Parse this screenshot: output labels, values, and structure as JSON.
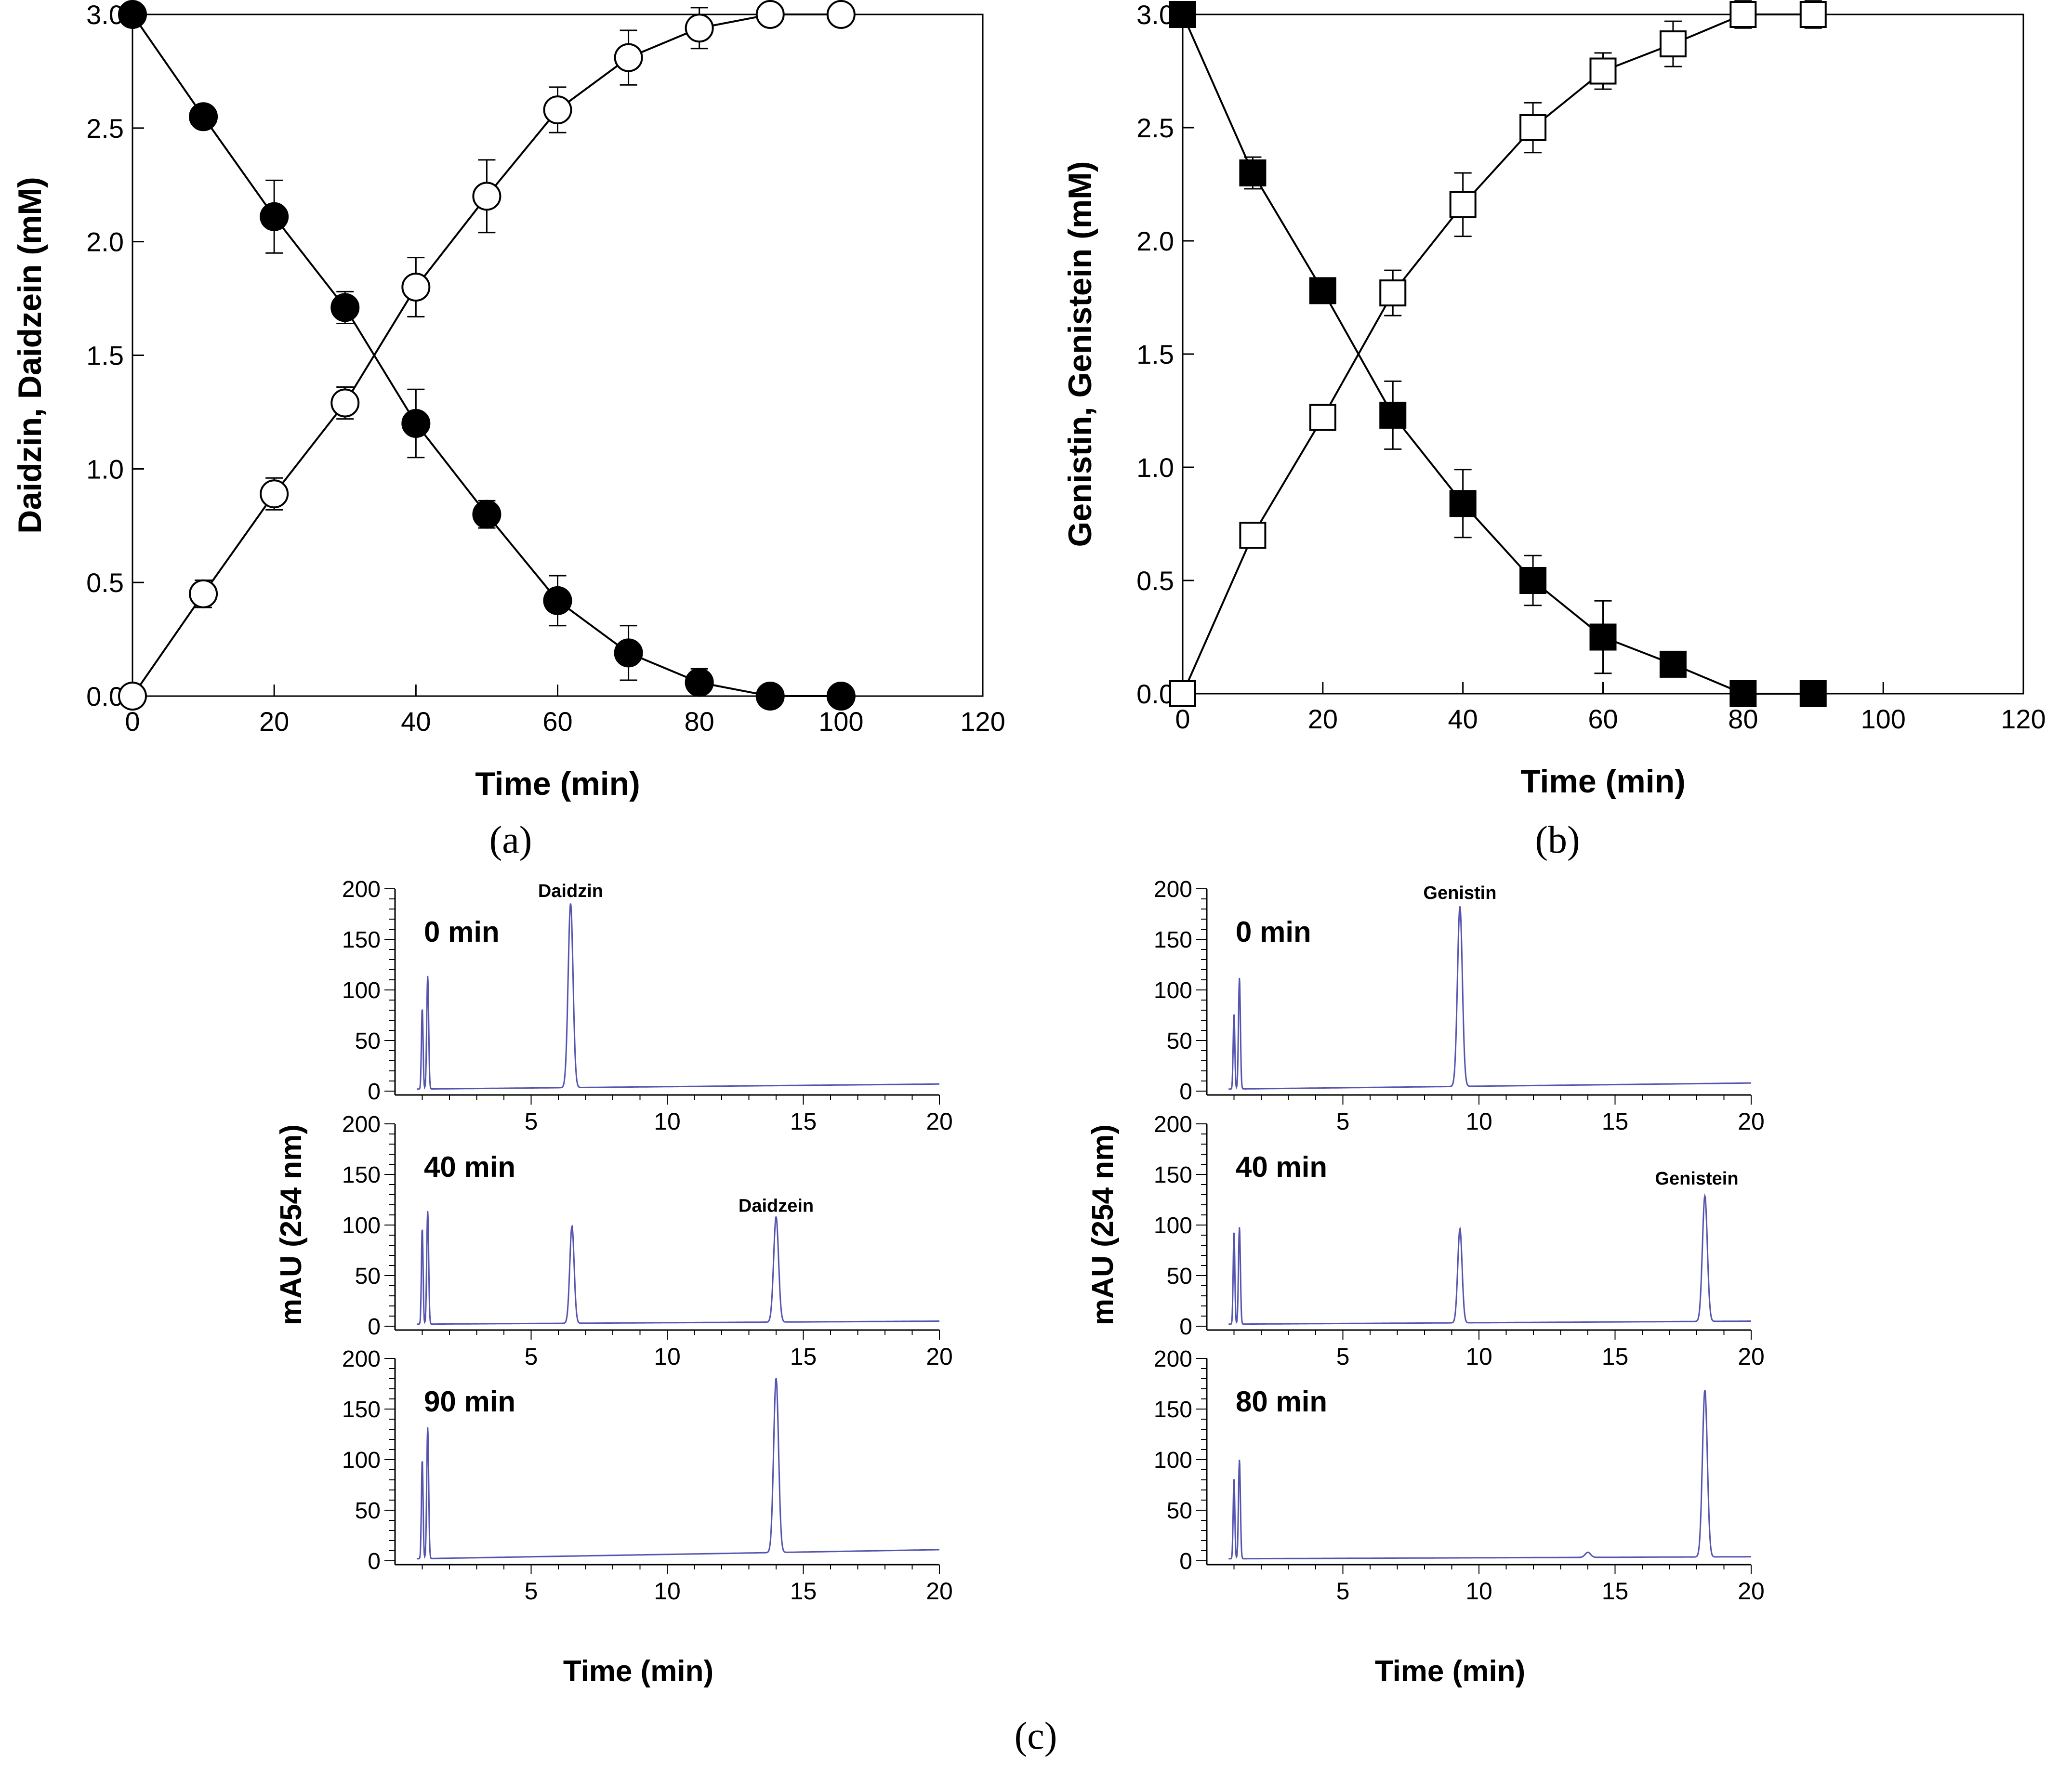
{
  "chart_data": [
    {
      "id": "a",
      "type": "line",
      "xlabel": "Time (min)",
      "ylabel": "Daidzin, Daidzein (mM)",
      "xlim": [
        0,
        120
      ],
      "ylim": [
        0,
        3.0
      ],
      "xticks": [
        0,
        20,
        40,
        60,
        80,
        100,
        120
      ],
      "xtick_labels": [
        "0",
        "20",
        "40",
        "60",
        "80",
        "100",
        "120"
      ],
      "yticks": [
        0,
        0.5,
        1.0,
        1.5,
        2.0,
        2.5,
        3.0
      ],
      "ytick_labels": [
        "0.0",
        "0.5",
        "1.0",
        "1.5",
        "2.0",
        "2.5",
        "3.0"
      ],
      "marker": "circle",
      "series": [
        {
          "name": "Daidzin",
          "fill": "filled",
          "x": [
            0,
            10,
            20,
            30,
            40,
            50,
            60,
            70,
            80,
            90,
            100
          ],
          "y": [
            3.0,
            2.55,
            2.11,
            1.71,
            1.2,
            0.8,
            0.42,
            0.19,
            0.06,
            0.0,
            0.0
          ],
          "err": [
            0.0,
            0.04,
            0.16,
            0.07,
            0.15,
            0.06,
            0.11,
            0.12,
            0.06,
            0.0,
            0.0
          ]
        },
        {
          "name": "Daidzein",
          "fill": "open",
          "x": [
            0,
            10,
            20,
            30,
            40,
            50,
            60,
            70,
            80,
            90,
            100
          ],
          "y": [
            0.0,
            0.45,
            0.89,
            1.29,
            1.8,
            2.2,
            2.58,
            2.81,
            2.94,
            3.0,
            3.0
          ],
          "err": [
            0.0,
            0.06,
            0.07,
            0.07,
            0.13,
            0.16,
            0.1,
            0.12,
            0.09,
            0.0,
            0.0
          ]
        }
      ]
    },
    {
      "id": "b",
      "type": "line",
      "xlabel": "Time (min)",
      "ylabel": "Genistin, Genistein (mM)",
      "xlim": [
        0,
        120
      ],
      "ylim": [
        0,
        3.0
      ],
      "xticks": [
        0,
        20,
        40,
        60,
        80,
        100,
        120
      ],
      "xtick_labels": [
        "0",
        "20",
        "40",
        "60",
        "80",
        "100",
        "120"
      ],
      "yticks": [
        0,
        0.5,
        1.0,
        1.5,
        2.0,
        2.5,
        3.0
      ],
      "ytick_labels": [
        "0.0",
        "0.5",
        "1.0",
        "1.5",
        "2.0",
        "2.5",
        "3.0"
      ],
      "marker": "square",
      "series": [
        {
          "name": "Genistin",
          "fill": "filled",
          "x": [
            0,
            10,
            20,
            30,
            40,
            50,
            60,
            70,
            80,
            90
          ],
          "y": [
            3.0,
            2.3,
            1.78,
            1.23,
            0.84,
            0.5,
            0.25,
            0.13,
            0.0,
            0.0
          ],
          "err": [
            0.0,
            0.07,
            0.05,
            0.15,
            0.15,
            0.11,
            0.16,
            0.03,
            0.0,
            0.0
          ]
        },
        {
          "name": "Genistein",
          "fill": "open",
          "x": [
            0,
            10,
            20,
            30,
            40,
            50,
            60,
            70,
            80,
            90
          ],
          "y": [
            0.0,
            0.7,
            1.22,
            1.77,
            2.16,
            2.5,
            2.75,
            2.87,
            3.0,
            3.0
          ],
          "err": [
            0.0,
            0.02,
            0.05,
            0.1,
            0.14,
            0.11,
            0.08,
            0.1,
            0.06,
            0.06
          ]
        }
      ]
    },
    {
      "id": "c",
      "type": "line",
      "xlabel": "Time (min)",
      "ylabel": "mAU (254 nm)",
      "xlim": [
        0,
        20
      ],
      "ylim": [
        0,
        200
      ],
      "xticks": [
        5,
        10,
        15,
        20
      ],
      "xtick_labels": [
        "5",
        "10",
        "15",
        "20"
      ],
      "yticks": [
        0,
        50,
        100,
        150,
        200
      ],
      "ytick_labels": [
        "0",
        "50",
        "100",
        "150",
        "200"
      ],
      "columns": [
        {
          "compound_pair": [
            "Daidzin",
            "Daidzein"
          ],
          "traces": [
            {
              "label": "0 min",
              "baseline_start": 2,
              "baseline_end": 7,
              "peaks": [
                {
                  "t": 1.0,
                  "h": 80,
                  "w": 0.03
                },
                {
                  "t": 1.2,
                  "h": 112,
                  "w": 0.035
                },
                {
                  "t": 6.45,
                  "h": 182,
                  "w": 0.09
                }
              ],
              "annotations": [
                {
                  "text": "Daidzin",
                  "t": 6.45,
                  "level": 192
                }
              ]
            },
            {
              "label": "40 min",
              "baseline_start": 2,
              "baseline_end": 5,
              "peaks": [
                {
                  "t": 1.0,
                  "h": 95,
                  "w": 0.03
                },
                {
                  "t": 1.2,
                  "h": 112,
                  "w": 0.035
                },
                {
                  "t": 6.5,
                  "h": 96,
                  "w": 0.08
                },
                {
                  "t": 14.0,
                  "h": 104,
                  "w": 0.09
                }
              ],
              "annotations": [
                {
                  "text": "Daidzein",
                  "t": 14.0,
                  "level": 113
                }
              ]
            },
            {
              "label": "90 min",
              "baseline_start": 2,
              "baseline_end": 11,
              "peaks": [
                {
                  "t": 1.0,
                  "h": 98,
                  "w": 0.03
                },
                {
                  "t": 1.2,
                  "h": 130,
                  "w": 0.035
                },
                {
                  "t": 14.0,
                  "h": 172,
                  "w": 0.09
                }
              ],
              "annotations": []
            }
          ]
        },
        {
          "compound_pair": [
            "Genistin",
            "Genistein"
          ],
          "traces": [
            {
              "label": "0 min",
              "baseline_start": 2,
              "baseline_end": 8,
              "peaks": [
                {
                  "t": 1.0,
                  "h": 75,
                  "w": 0.03
                },
                {
                  "t": 1.2,
                  "h": 110,
                  "w": 0.035
                },
                {
                  "t": 9.3,
                  "h": 178,
                  "w": 0.09
                }
              ],
              "annotations": [
                {
                  "text": "Genistin",
                  "t": 9.3,
                  "level": 190
                }
              ]
            },
            {
              "label": "40 min",
              "baseline_start": 2,
              "baseline_end": 5,
              "peaks": [
                {
                  "t": 1.0,
                  "h": 92,
                  "w": 0.03
                },
                {
                  "t": 1.2,
                  "h": 96,
                  "w": 0.035
                },
                {
                  "t": 9.3,
                  "h": 93,
                  "w": 0.08
                },
                {
                  "t": 18.3,
                  "h": 124,
                  "w": 0.09
                }
              ],
              "annotations": [
                {
                  "text": "Genistein",
                  "t": 18.0,
                  "level": 140
                }
              ]
            },
            {
              "label": "80 min",
              "baseline_start": 2,
              "baseline_end": 4,
              "peaks": [
                {
                  "t": 1.0,
                  "h": 80,
                  "w": 0.03
                },
                {
                  "t": 1.2,
                  "h": 98,
                  "w": 0.035
                },
                {
                  "t": 14.0,
                  "h": 5,
                  "w": 0.1
                },
                {
                  "t": 18.3,
                  "h": 165,
                  "w": 0.09
                }
              ],
              "annotations": []
            }
          ]
        }
      ]
    }
  ],
  "captions": {
    "a": "(a)",
    "b": "(b)",
    "c": "(c)"
  },
  "colors": {
    "axis": "#000000",
    "trace": "#5555b0",
    "marker_fill": "#000000",
    "open_fill": "#ffffff"
  }
}
